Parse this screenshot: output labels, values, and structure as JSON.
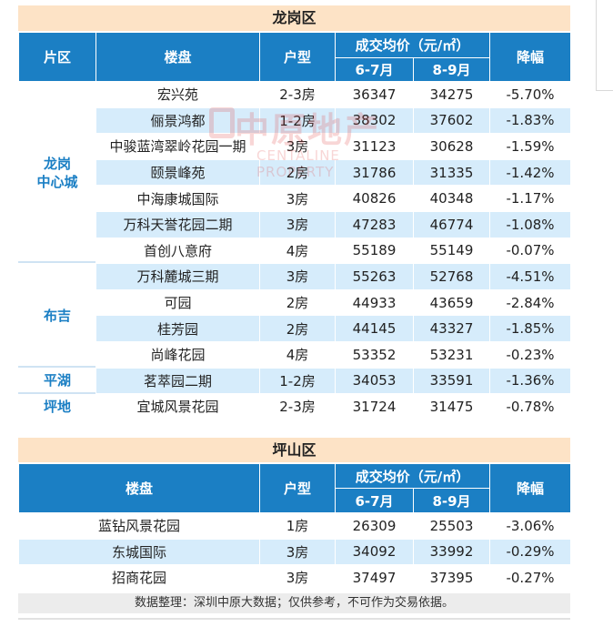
{
  "section1": {
    "title": "龙岗区",
    "headers": {
      "area": "片区",
      "estate": "楼盘",
      "unit": "户型",
      "avg_price": "成交均价（元/㎡）",
      "period1": "6-7月",
      "period2": "8-9月",
      "drop": "降幅"
    },
    "districts": [
      "龙岗\n中心城",
      "布吉",
      "平湖",
      "坪地"
    ],
    "rows": [
      {
        "estate": "宏兴苑",
        "unit": "2-3房",
        "p1": "36347",
        "p2": "34275",
        "drop": "-5.70%"
      },
      {
        "estate": "俪景鸿都",
        "unit": "1-2房",
        "p1": "38302",
        "p2": "37602",
        "drop": "-1.83%"
      },
      {
        "estate": "中骏蓝湾翠岭花园一期",
        "unit": "3房",
        "p1": "31123",
        "p2": "30628",
        "drop": "-1.59%"
      },
      {
        "estate": "颐景峰苑",
        "unit": "2房",
        "p1": "31786",
        "p2": "31335",
        "drop": "-1.42%"
      },
      {
        "estate": "中海康城国际",
        "unit": "3房",
        "p1": "40826",
        "p2": "40348",
        "drop": "-1.17%"
      },
      {
        "estate": "万科天誉花园二期",
        "unit": "3房",
        "p1": "47283",
        "p2": "46774",
        "drop": "-1.08%"
      },
      {
        "estate": "首创八意府",
        "unit": "4房",
        "p1": "55189",
        "p2": "55149",
        "drop": "-0.07%"
      },
      {
        "estate": "万科麓城三期",
        "unit": "3房",
        "p1": "55263",
        "p2": "52768",
        "drop": "-4.51%"
      },
      {
        "estate": "可园",
        "unit": "2房",
        "p1": "44933",
        "p2": "43659",
        "drop": "-2.84%"
      },
      {
        "estate": "桂芳园",
        "unit": "2房",
        "p1": "44145",
        "p2": "43327",
        "drop": "-1.85%"
      },
      {
        "estate": "尚峰花园",
        "unit": "4房",
        "p1": "53352",
        "p2": "53231",
        "drop": "-0.23%"
      },
      {
        "estate": "茗萃园二期",
        "unit": "1-2房",
        "p1": "34053",
        "p2": "33591",
        "drop": "-1.36%"
      },
      {
        "estate": "宜城风景花园",
        "unit": "2-3房",
        "p1": "31724",
        "p2": "31475",
        "drop": "-0.78%"
      }
    ]
  },
  "section2": {
    "title": "坪山区",
    "headers": {
      "estate": "楼盘",
      "unit": "户型",
      "avg_price": "成交均价（元/㎡）",
      "period1": "6-7月",
      "period2": "8-9月",
      "drop": "降幅"
    },
    "rows": [
      {
        "estate": "蓝钻风景花园",
        "unit": "1房",
        "p1": "26309",
        "p2": "25503",
        "drop": "-3.06%"
      },
      {
        "estate": "东城国际",
        "unit": "3房",
        "p1": "34092",
        "p2": "33992",
        "drop": "-0.29%"
      },
      {
        "estate": "招商花园",
        "unit": "3房",
        "p1": "37497",
        "p2": "37395",
        "drop": "-0.27%"
      }
    ]
  },
  "note": "数据整理：深圳中原大数据；仅供参考，不可作为交易依据。",
  "watermark": {
    "cn": "中原地产",
    "en": "CENTALINE PROPERTY"
  },
  "colors": {
    "header_blue": "#1b7fc4",
    "row_stripe": "#d6ecfb",
    "title_bar": "#fde3c6",
    "district_text": "#1b7fc4"
  }
}
